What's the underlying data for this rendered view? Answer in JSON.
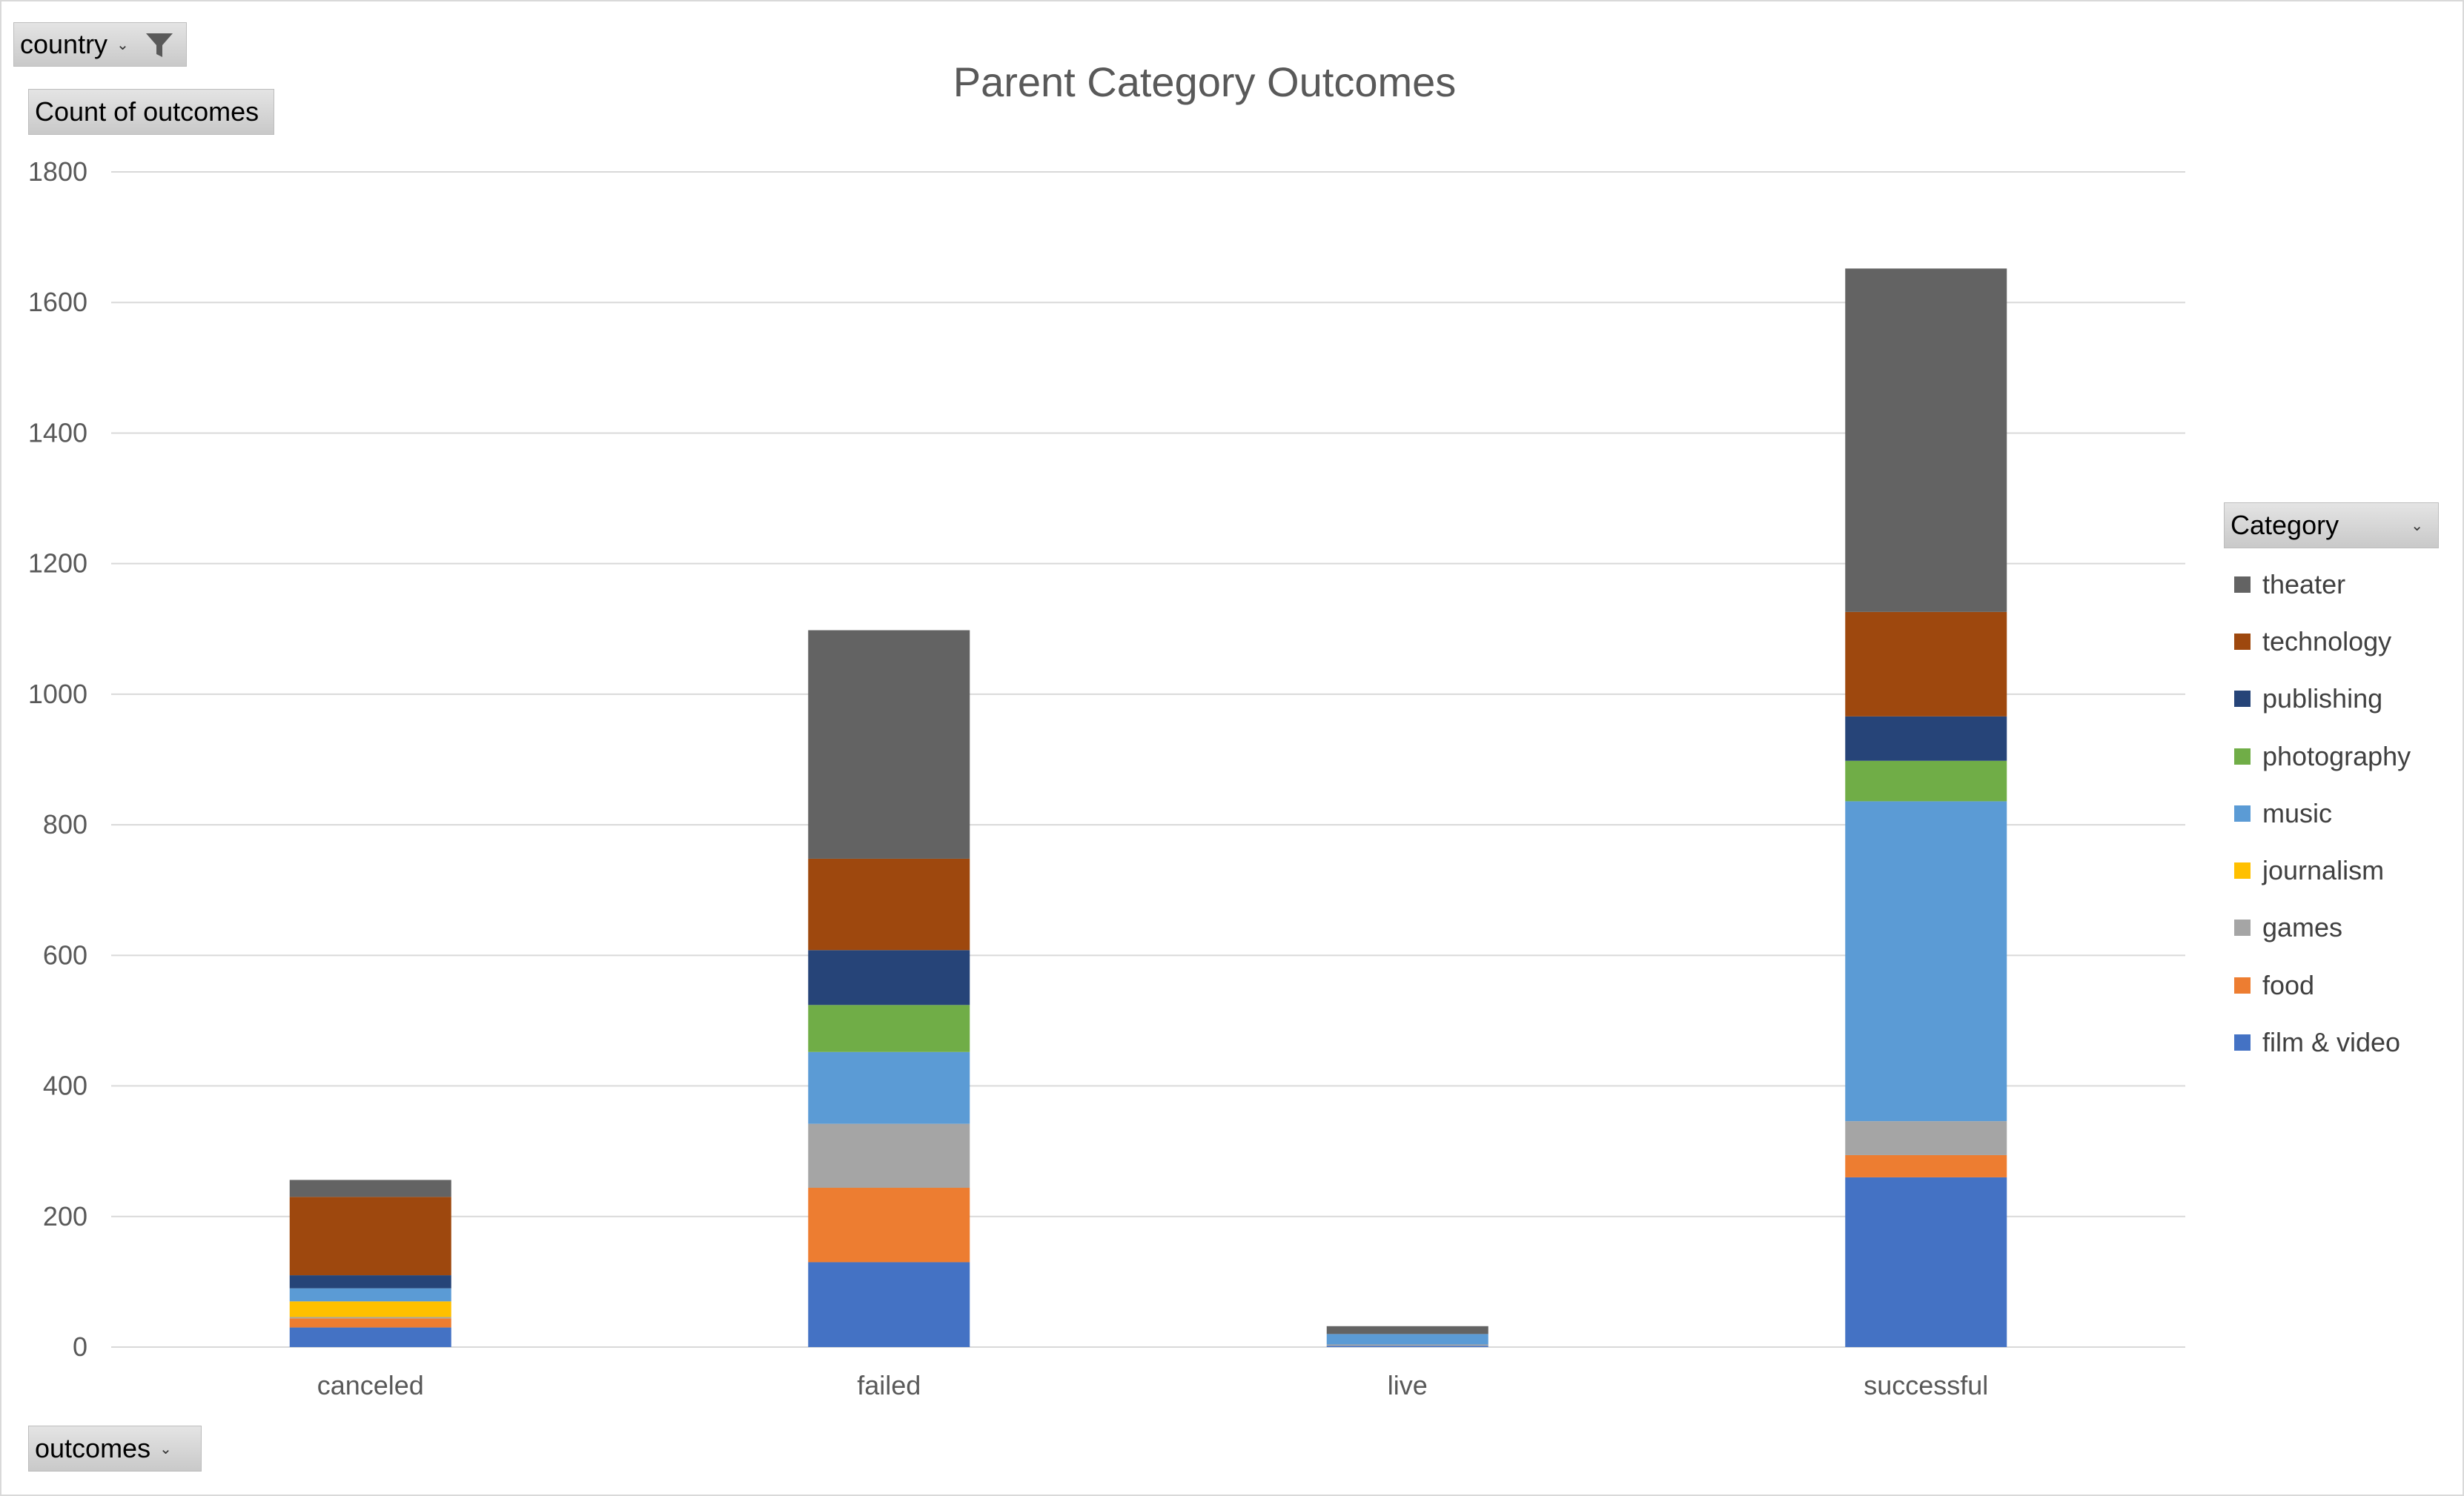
{
  "controls": {
    "filter_label": "country",
    "values_label": "Count of outcomes",
    "axis_label": "outcomes",
    "legend_label": "Category",
    "dropdown_glyph": "⌄",
    "filter_icon": "funnel-icon"
  },
  "chart_data": {
    "type": "bar",
    "stacked": true,
    "title": "Parent Category Outcomes",
    "categories": [
      "canceled",
      "failed",
      "live",
      "successful"
    ],
    "ylim": [
      0,
      1800
    ],
    "yticks": [
      0,
      200,
      400,
      600,
      800,
      1000,
      1200,
      1400,
      1600,
      1800
    ],
    "grid": true,
    "legend_position": "right",
    "series": [
      {
        "name": "film & video",
        "color": "#4472c4",
        "values": [
          30,
          130,
          2,
          260
        ]
      },
      {
        "name": "food",
        "color": "#ed7d31",
        "values": [
          14,
          114,
          0,
          34
        ]
      },
      {
        "name": "games",
        "color": "#a5a5a5",
        "values": [
          2,
          98,
          2,
          52
        ]
      },
      {
        "name": "journalism",
        "color": "#ffc000",
        "values": [
          24,
          0,
          0,
          0
        ]
      },
      {
        "name": "music",
        "color": "#5b9bd5",
        "values": [
          20,
          110,
          16,
          490
        ]
      },
      {
        "name": "photography",
        "color": "#70ad47",
        "values": [
          0,
          72,
          0,
          62
        ]
      },
      {
        "name": "publishing",
        "color": "#264478",
        "values": [
          20,
          84,
          0,
          68
        ]
      },
      {
        "name": "technology",
        "color": "#9e480e",
        "values": [
          120,
          140,
          0,
          160
        ]
      },
      {
        "name": "theater",
        "color": "#636363",
        "values": [
          26,
          350,
          12,
          526
        ]
      }
    ]
  }
}
